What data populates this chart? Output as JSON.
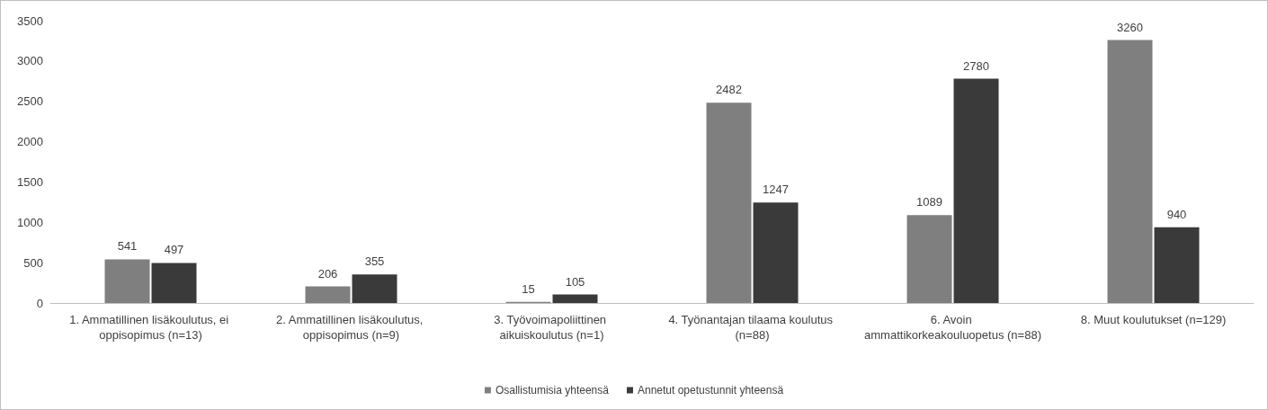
{
  "chart_data": {
    "type": "bar",
    "categories": [
      "1. Ammatillinen lisäkoulutus, ei oppisopimus (n=13)",
      "2. Ammatillinen lisäkoulutus, oppisopimus (n=9)",
      "3. Työvoimapoliittinen aikuiskoulutus (n=1)",
      "4. Työnantajan tilaama koulutus (n=88)",
      "6. Avoin ammattikorkeakouluopetus (n=88)",
      "8. Muut koulutukset (n=129)"
    ],
    "series": [
      {
        "name": "Osallistumisia yhteensä",
        "color": "#7f7f7f",
        "values": [
          541,
          206,
          15,
          2482,
          1089,
          3260
        ]
      },
      {
        "name": "Annetut opetustunnit yhteensä",
        "color": "#3a3a3a",
        "values": [
          497,
          355,
          105,
          1247,
          2780,
          940
        ]
      }
    ],
    "ylim": [
      0,
      3500
    ],
    "yticks": [
      0,
      500,
      1000,
      1500,
      2000,
      2500,
      3000,
      3500
    ],
    "data_labels": true,
    "grid": false,
    "legend": "bottom"
  }
}
